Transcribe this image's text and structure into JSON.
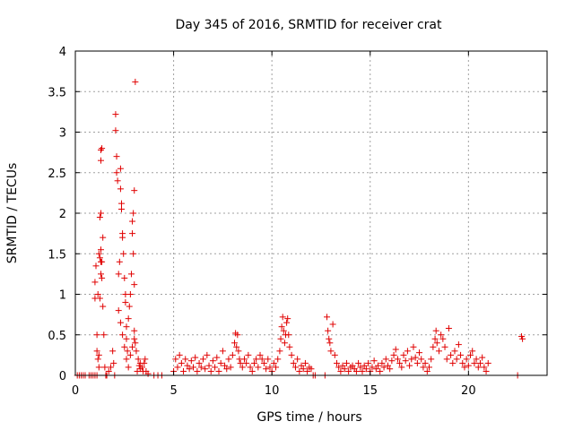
{
  "chart_data": {
    "type": "scatter",
    "title": "Day 345 of 2016, SRMTID for receiver crat",
    "xlabel": "GPS time / hours",
    "ylabel": "SRMTID / TECUs",
    "xlim": [
      0,
      24
    ],
    "ylim": [
      0,
      4
    ],
    "xticks": [
      0,
      5,
      10,
      15,
      20
    ],
    "yticks": [
      0,
      0.5,
      1,
      1.5,
      2,
      2.5,
      3,
      3.5,
      4
    ],
    "xtick_labels": [
      "0",
      "5",
      "10",
      "15",
      "20"
    ],
    "ytick_labels": [
      "0",
      "0.5",
      "1",
      "1.5",
      "2",
      "2.5",
      "3",
      "3.5",
      "4"
    ],
    "grid": true,
    "marker": "+",
    "color": "#e00000",
    "series": [
      {
        "name": "SRMTID",
        "points": [
          [
            0.1,
            0
          ],
          [
            0.2,
            0
          ],
          [
            0.3,
            0
          ],
          [
            0.4,
            0
          ],
          [
            0.5,
            0
          ],
          [
            0.7,
            0
          ],
          [
            0.8,
            0
          ],
          [
            0.9,
            0
          ],
          [
            1.0,
            0
          ],
          [
            1.1,
            0
          ],
          [
            1.0,
            0.95
          ],
          [
            1.0,
            1.15
          ],
          [
            1.05,
            1.35
          ],
          [
            1.1,
            0.5
          ],
          [
            1.1,
            0.3
          ],
          [
            1.15,
            0.2
          ],
          [
            1.2,
            0.25
          ],
          [
            1.2,
            0.1
          ],
          [
            1.15,
            1.0
          ],
          [
            1.25,
            0.95
          ],
          [
            1.2,
            1.5
          ],
          [
            1.25,
            1.45
          ],
          [
            1.3,
            1.4
          ],
          [
            1.3,
            1.55
          ],
          [
            1.3,
            1.25
          ],
          [
            1.35,
            1.2
          ],
          [
            1.25,
            1.95
          ],
          [
            1.3,
            2.0
          ],
          [
            1.3,
            2.65
          ],
          [
            1.3,
            2.78
          ],
          [
            1.35,
            2.8
          ],
          [
            1.4,
            1.7
          ],
          [
            1.35,
            1.4
          ],
          [
            1.4,
            0.85
          ],
          [
            1.45,
            0.5
          ],
          [
            1.5,
            0.1
          ],
          [
            1.55,
            0
          ],
          [
            1.6,
            0
          ],
          [
            1.7,
            0.05
          ],
          [
            1.8,
            0.1
          ],
          [
            1.9,
            0.3
          ],
          [
            1.95,
            0.15
          ],
          [
            2.0,
            0
          ],
          [
            2.05,
            3.22
          ],
          [
            2.05,
            3.02
          ],
          [
            2.1,
            2.7
          ],
          [
            2.1,
            2.5
          ],
          [
            2.15,
            2.4
          ],
          [
            2.2,
            1.25
          ],
          [
            2.25,
            1.4
          ],
          [
            2.3,
            2.3
          ],
          [
            2.3,
            2.55
          ],
          [
            2.35,
            2.05
          ],
          [
            2.35,
            2.12
          ],
          [
            2.4,
            1.75
          ],
          [
            2.4,
            1.7
          ],
          [
            2.45,
            1.5
          ],
          [
            2.5,
            1.2
          ],
          [
            2.55,
            1.0
          ],
          [
            2.55,
            0.9
          ],
          [
            2.6,
            0.6
          ],
          [
            2.6,
            0.45
          ],
          [
            2.65,
            0.3
          ],
          [
            2.7,
            0.7
          ],
          [
            2.75,
            0.85
          ],
          [
            2.8,
            1.0
          ],
          [
            2.85,
            1.25
          ],
          [
            2.9,
            1.75
          ],
          [
            2.9,
            1.9
          ],
          [
            2.95,
            2.0
          ],
          [
            2.95,
            1.5
          ],
          [
            3.0,
            1.12
          ],
          [
            3.0,
            0.55
          ],
          [
            3.05,
            0.4
          ],
          [
            3.05,
            3.62
          ],
          [
            3.0,
            2.28
          ],
          [
            3.1,
            0.3
          ],
          [
            3.2,
            0.2
          ],
          [
            3.3,
            0.15
          ],
          [
            3.4,
            0.1
          ],
          [
            2.2,
            0.8
          ],
          [
            2.3,
            0.65
          ],
          [
            2.4,
            0.5
          ],
          [
            2.5,
            0.35
          ],
          [
            2.6,
            0.2
          ],
          [
            2.7,
            0.1
          ],
          [
            2.8,
            0.25
          ],
          [
            2.9,
            0.35
          ],
          [
            3.0,
            0.45
          ],
          [
            3.15,
            0.05
          ],
          [
            3.3,
            0.08
          ],
          [
            3.5,
            0.15
          ],
          [
            3.6,
            0.05
          ],
          [
            3.7,
            0.02
          ],
          [
            4.0,
            0
          ],
          [
            4.2,
            0
          ],
          [
            4.4,
            0
          ],
          [
            3.55,
            0.2
          ],
          [
            3.45,
            0.05
          ],
          [
            3.25,
            0.12
          ],
          [
            5.0,
            0.05
          ],
          [
            5.1,
            0.2
          ],
          [
            5.2,
            0.1
          ],
          [
            5.3,
            0.25
          ],
          [
            5.4,
            0.15
          ],
          [
            5.5,
            0.05
          ],
          [
            5.6,
            0.2
          ],
          [
            5.7,
            0.12
          ],
          [
            5.8,
            0.08
          ],
          [
            5.9,
            0.18
          ],
          [
            6.0,
            0.1
          ],
          [
            6.1,
            0.22
          ],
          [
            6.2,
            0.05
          ],
          [
            6.3,
            0.15
          ],
          [
            6.4,
            0.1
          ],
          [
            6.5,
            0.2
          ],
          [
            6.6,
            0.08
          ],
          [
            6.7,
            0.25
          ],
          [
            6.8,
            0.12
          ],
          [
            6.9,
            0.05
          ],
          [
            7.0,
            0.18
          ],
          [
            7.1,
            0.1
          ],
          [
            7.2,
            0.22
          ],
          [
            7.3,
            0.05
          ],
          [
            7.4,
            0.15
          ],
          [
            7.5,
            0.3
          ],
          [
            7.6,
            0.12
          ],
          [
            7.7,
            0.08
          ],
          [
            7.8,
            0.2
          ],
          [
            7.9,
            0.1
          ],
          [
            8.0,
            0.25
          ],
          [
            8.1,
            0.4
          ],
          [
            8.15,
            0.52
          ],
          [
            8.2,
            0.35
          ],
          [
            8.25,
            0.5
          ],
          [
            8.3,
            0.3
          ],
          [
            8.35,
            0.2
          ],
          [
            8.4,
            0.15
          ],
          [
            8.5,
            0.1
          ],
          [
            8.6,
            0.2
          ],
          [
            8.7,
            0.15
          ],
          [
            8.8,
            0.25
          ],
          [
            8.9,
            0.1
          ],
          [
            9.0,
            0.05
          ],
          [
            9.1,
            0.15
          ],
          [
            9.2,
            0.2
          ],
          [
            9.3,
            0.1
          ],
          [
            9.4,
            0.25
          ],
          [
            9.5,
            0.2
          ],
          [
            9.6,
            0.15
          ],
          [
            9.7,
            0.08
          ],
          [
            9.8,
            0.2
          ],
          [
            9.9,
            0.1
          ],
          [
            10.0,
            0.05
          ],
          [
            10.1,
            0.15
          ],
          [
            10.2,
            0.1
          ],
          [
            10.3,
            0.2
          ],
          [
            10.4,
            0.3
          ],
          [
            10.45,
            0.45
          ],
          [
            10.5,
            0.6
          ],
          [
            10.55,
            0.72
          ],
          [
            10.6,
            0.55
          ],
          [
            10.65,
            0.4
          ],
          [
            10.7,
            0.5
          ],
          [
            10.75,
            0.65
          ],
          [
            10.8,
            0.7
          ],
          [
            10.85,
            0.5
          ],
          [
            10.9,
            0.35
          ],
          [
            11.0,
            0.25
          ],
          [
            11.1,
            0.15
          ],
          [
            11.2,
            0.1
          ],
          [
            11.3,
            0.2
          ],
          [
            11.4,
            0.05
          ],
          [
            11.5,
            0.12
          ],
          [
            11.6,
            0.08
          ],
          [
            11.7,
            0.15
          ],
          [
            11.8,
            0.05
          ],
          [
            11.9,
            0.1
          ],
          [
            12.0,
            0.08
          ],
          [
            12.1,
            0
          ],
          [
            12.2,
            0
          ],
          [
            12.7,
            0
          ],
          [
            12.8,
            0.72
          ],
          [
            12.85,
            0.55
          ],
          [
            12.9,
            0.45
          ],
          [
            12.95,
            0.4
          ],
          [
            13.0,
            0.3
          ],
          [
            13.1,
            0.63
          ],
          [
            13.2,
            0.25
          ],
          [
            13.3,
            0.15
          ],
          [
            13.4,
            0.1
          ],
          [
            13.5,
            0.05
          ],
          [
            13.6,
            0.12
          ],
          [
            13.7,
            0.08
          ],
          [
            13.8,
            0.15
          ],
          [
            13.9,
            0.05
          ],
          [
            14.0,
            0.1
          ],
          [
            14.1,
            0.12
          ],
          [
            14.2,
            0.08
          ],
          [
            14.3,
            0.05
          ],
          [
            14.4,
            0.15
          ],
          [
            14.5,
            0.1
          ],
          [
            14.6,
            0.05
          ],
          [
            14.7,
            0.12
          ],
          [
            14.8,
            0.08
          ],
          [
            14.9,
            0.15
          ],
          [
            15.0,
            0.05
          ],
          [
            15.1,
            0.1
          ],
          [
            15.2,
            0.18
          ],
          [
            15.3,
            0.08
          ],
          [
            15.4,
            0.12
          ],
          [
            15.5,
            0.05
          ],
          [
            15.6,
            0.15
          ],
          [
            15.7,
            0.1
          ],
          [
            15.8,
            0.2
          ],
          [
            15.9,
            0.12
          ],
          [
            16.0,
            0.08
          ],
          [
            16.1,
            0.18
          ],
          [
            16.2,
            0.25
          ],
          [
            16.3,
            0.32
          ],
          [
            16.4,
            0.2
          ],
          [
            16.5,
            0.15
          ],
          [
            16.6,
            0.1
          ],
          [
            16.7,
            0.25
          ],
          [
            16.8,
            0.18
          ],
          [
            16.9,
            0.3
          ],
          [
            17.0,
            0.12
          ],
          [
            17.1,
            0.2
          ],
          [
            17.2,
            0.35
          ],
          [
            17.3,
            0.22
          ],
          [
            17.4,
            0.15
          ],
          [
            17.5,
            0.28
          ],
          [
            17.6,
            0.2
          ],
          [
            17.7,
            0.1
          ],
          [
            17.8,
            0.15
          ],
          [
            17.9,
            0.05
          ],
          [
            18.0,
            0.1
          ],
          [
            18.1,
            0.2
          ],
          [
            18.2,
            0.35
          ],
          [
            18.3,
            0.45
          ],
          [
            18.35,
            0.55
          ],
          [
            18.4,
            0.4
          ],
          [
            18.5,
            0.3
          ],
          [
            18.6,
            0.5
          ],
          [
            18.7,
            0.45
          ],
          [
            18.8,
            0.35
          ],
          [
            18.9,
            0.2
          ],
          [
            19.0,
            0.58
          ],
          [
            19.1,
            0.25
          ],
          [
            19.2,
            0.15
          ],
          [
            19.3,
            0.3
          ],
          [
            19.4,
            0.2
          ],
          [
            19.5,
            0.38
          ],
          [
            19.6,
            0.25
          ],
          [
            19.7,
            0.15
          ],
          [
            19.8,
            0.1
          ],
          [
            19.9,
            0.2
          ],
          [
            20.0,
            0.12
          ],
          [
            20.1,
            0.25
          ],
          [
            20.2,
            0.3
          ],
          [
            20.3,
            0.15
          ],
          [
            20.4,
            0.2
          ],
          [
            20.5,
            0.1
          ],
          [
            20.6,
            0.15
          ],
          [
            20.7,
            0.22
          ],
          [
            20.8,
            0.1
          ],
          [
            20.9,
            0.05
          ],
          [
            21.0,
            0.15
          ],
          [
            22.5,
            0
          ],
          [
            22.7,
            0.48
          ],
          [
            22.75,
            0.45
          ]
        ]
      }
    ]
  }
}
